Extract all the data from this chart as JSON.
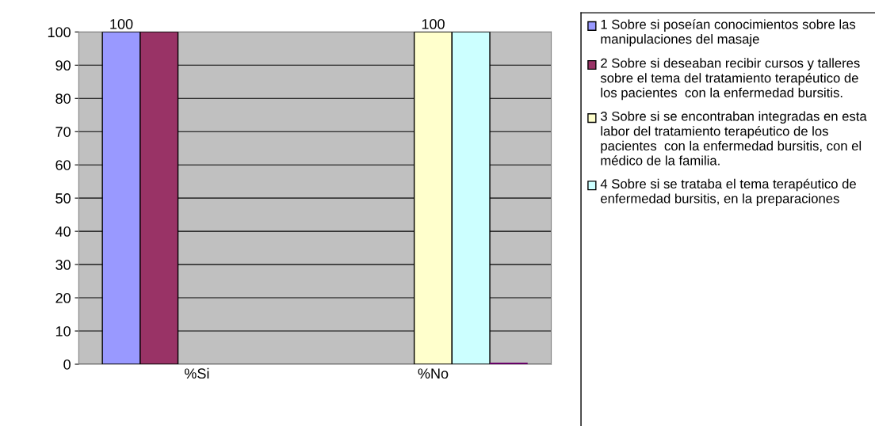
{
  "chart_data": {
    "type": "bar",
    "categories": [
      "%Si",
      "%No"
    ],
    "ylim": [
      0,
      100
    ],
    "yticks": [
      0,
      10,
      20,
      30,
      40,
      50,
      60,
      70,
      80,
      90,
      100
    ],
    "grid": "y",
    "legend": "right",
    "series": [
      {
        "name": "1 Sobre si poseían conocimientos sobre las manipulaciones del masaje",
        "color": "#9999ff",
        "values": [
          100,
          null
        ],
        "value_labels": [
          "100",
          null
        ]
      },
      {
        "name": "2 Sobre si deseaban recibir cursos y talleres sobre el tema del tratamiento terapéutico de los pacientes  con la enfermedad bursitis.",
        "color": "#993366",
        "values": [
          100,
          null
        ]
      },
      {
        "name": "3 Sobre si se encontraban integradas en esta labor del tratamiento terapéutico de los pacientes  con la enfermedad bursitis, con el médico de la familia.",
        "color": "#ffffcc",
        "values": [
          null,
          100
        ],
        "value_labels": [
          null,
          "100"
        ]
      },
      {
        "name": "4 Sobre si se trataba el tema terapéutico de enfermedad bursitis, en la preparaciones",
        "color": "#ccffff",
        "values": [
          null,
          100
        ]
      },
      {
        "color": "#660066",
        "values": [
          null,
          0
        ]
      }
    ]
  }
}
